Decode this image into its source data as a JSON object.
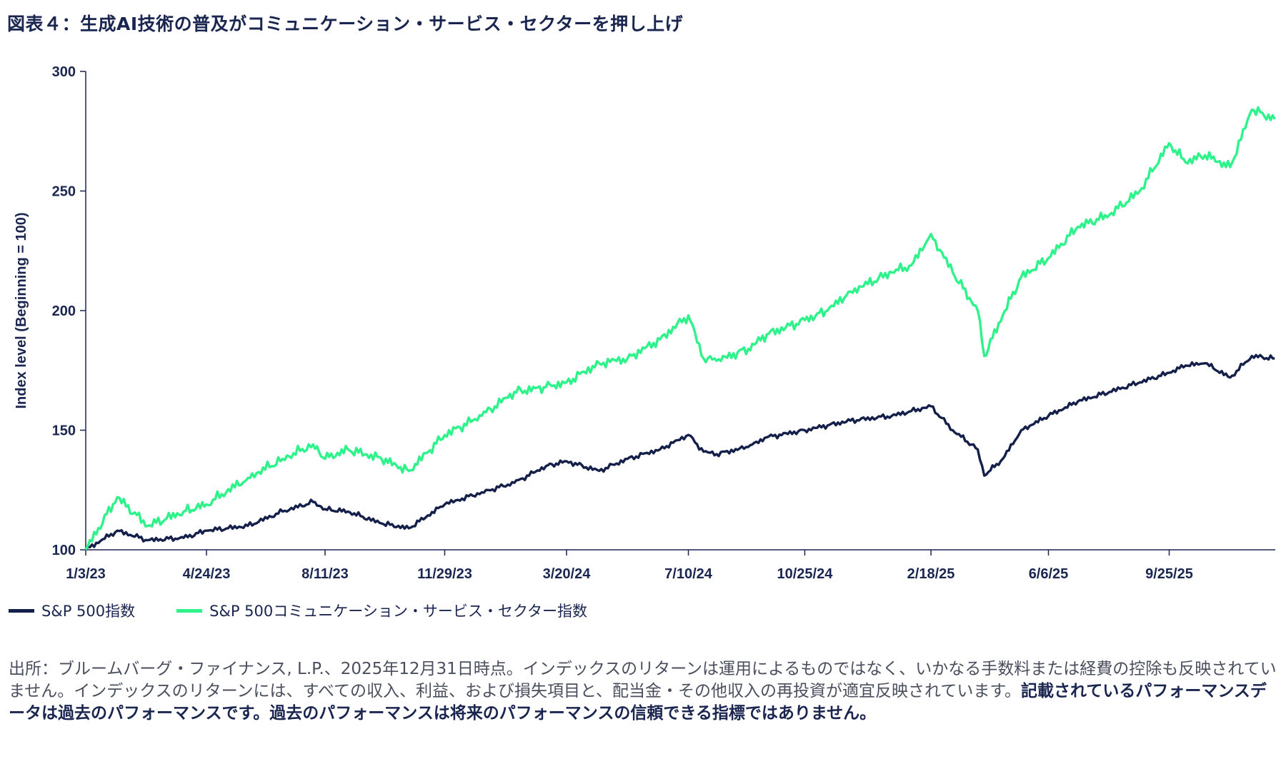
{
  "title": "図表４：生成AI技術の普及がコミュニケーション・サービス・セクターを押し上げ",
  "chart_data": {
    "type": "line",
    "ylabel": "Index level (Beginning = 100)",
    "ylim": [
      100,
      300
    ],
    "yticks": [
      100,
      150,
      200,
      250,
      300
    ],
    "xticks": [
      "1/3/23",
      "4/24/23",
      "8/11/23",
      "11/29/23",
      "3/20/24",
      "7/10/24",
      "10/25/24",
      "2/18/25",
      "6/6/25",
      "9/25/25"
    ],
    "x": [
      "1/3/23",
      "2/1/23",
      "3/1/23",
      "4/3/23",
      "4/24/23",
      "6/1/23",
      "7/3/23",
      "7/31/23",
      "8/11/23",
      "9/1/23",
      "10/2/23",
      "10/27/23",
      "11/29/23",
      "1/2/24",
      "2/1/24",
      "3/1/24",
      "3/20/24",
      "4/19/24",
      "5/15/24",
      "6/14/24",
      "7/10/24",
      "7/24/24",
      "8/5/24",
      "9/3/24",
      "9/20/24",
      "10/25/24",
      "11/15/24",
      "12/6/24",
      "1/13/25",
      "1/31/25",
      "2/18/25",
      "3/10/25",
      "4/2/25",
      "4/8/25",
      "4/25/25",
      "5/12/25",
      "6/6/25",
      "7/3/25",
      "8/1/25",
      "8/29/25",
      "9/25/25",
      "10/10/25",
      "10/28/25",
      "11/20/25",
      "12/10/25",
      "12/31/25"
    ],
    "series": [
      {
        "name": "S&P 500指数",
        "color": "#14204a",
        "values": [
          100,
          108,
          104,
          105,
          108,
          110,
          116,
          120,
          117,
          116,
          111,
          109,
          119,
          124,
          128,
          135,
          137,
          133,
          138,
          142,
          148,
          141,
          140,
          143,
          147,
          150,
          152,
          154,
          156,
          158,
          160,
          150,
          142,
          131,
          138,
          150,
          156,
          162,
          166,
          170,
          174,
          177,
          178,
          172,
          181,
          180
        ]
      },
      {
        "name": "S&P 500コミュニケーション・サービス・セクター指数",
        "color": "#2ef28a",
        "values": [
          100,
          122,
          110,
          116,
          119,
          130,
          138,
          144,
          138,
          142,
          138,
          133,
          148,
          156,
          166,
          168,
          170,
          178,
          180,
          188,
          198,
          180,
          179,
          184,
          190,
          196,
          200,
          208,
          216,
          219,
          232,
          216,
          200,
          181,
          198,
          214,
          222,
          235,
          240,
          250,
          270,
          262,
          265,
          260,
          284,
          280
        ]
      }
    ]
  },
  "legend": [
    {
      "label": "S&P 500指数",
      "color": "#14204a"
    },
    {
      "label": "S&P 500コミュニケーション・サービス・セクター指数",
      "color": "#2ef28a"
    }
  ],
  "source": {
    "normal": "出所：ブルームバーグ・ファイナンス, L.P.、2025年12月31日時点。インデックスのリターンは運用によるものではなく、いかなる手数料または経費の控除も反映されていません。インデックスのリターンには、すべての収入、利益、および損失項目と、配当金・その他収入の再投資が適宜反映されています。",
    "bold": "記載されているパフォーマンスデータは過去のパフォーマンスです。過去のパフォーマンスは将来のパフォーマンスの信頼できる指標ではありません。"
  }
}
